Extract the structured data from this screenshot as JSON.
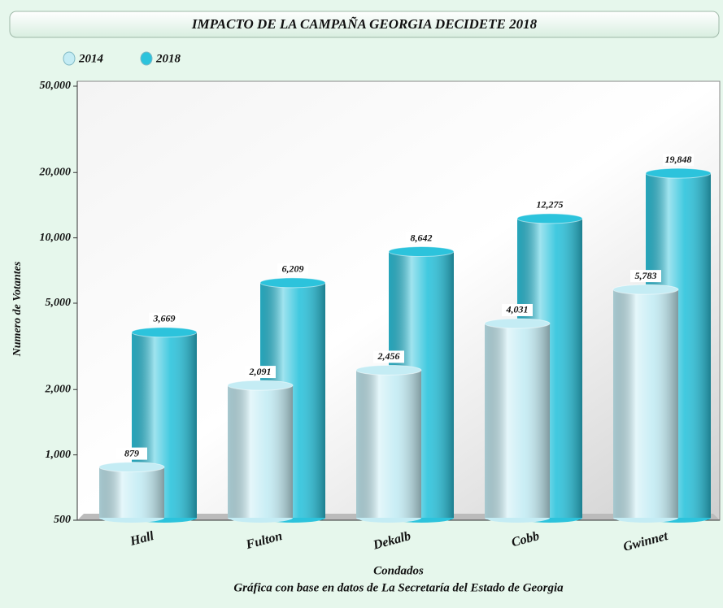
{
  "chart_data": {
    "type": "bar",
    "title": "IMPACTO DE LA CAMPAÑA GEORGIA DECIDETE 2018",
    "ylabel": "Numero de Votantes",
    "xlabel": "Condados",
    "subtitle": "Gráfica con base en datos de La Secretaría del Estado de Georgia",
    "categories": [
      "Hall",
      "Fulton",
      "Dekalb",
      "Cobb",
      "Gwinnet"
    ],
    "series": [
      {
        "name": "2014",
        "color": "#c4ecf4",
        "values": [
          879,
          2091,
          2456,
          4031,
          5783
        ],
        "value_labels": [
          "879",
          "2,091",
          "2,456",
          "4,031",
          "5,783"
        ]
      },
      {
        "name": "2018",
        "color": "#2cc3dc",
        "values": [
          3669,
          6209,
          8642,
          12275,
          19848
        ],
        "value_labels": [
          "3,669",
          "6,209",
          "8,642",
          "12,275",
          "19,848"
        ]
      }
    ],
    "log_scale": true,
    "ylim": [
      500,
      50000
    ],
    "yticks": [
      500,
      {
        "value": 1000,
        "label": "1,000"
      },
      {
        "value": 2000,
        "label": "2,000"
      },
      {
        "value": 5000,
        "label": "5,000"
      },
      {
        "value": 10000,
        "label": "10,000"
      },
      {
        "value": 20000,
        "label": "20,000"
      },
      {
        "value": 50000,
        "label": "50,000"
      }
    ],
    "legend": "top-left"
  }
}
